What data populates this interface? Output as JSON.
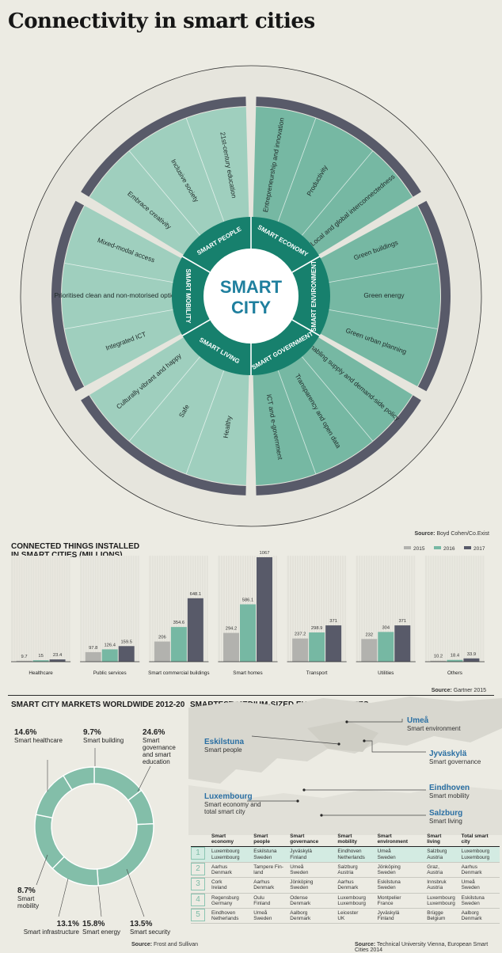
{
  "title": "Connectivity in smart cities",
  "wheel": {
    "center": [
      "SMART",
      "CITY"
    ],
    "domains": [
      "SMART ECONOMY",
      "SMART ENVIRONMENT",
      "SMART GOVERNMENT",
      "SMART LIVING",
      "SMART MOBILITY",
      "SMART PEOPLE"
    ],
    "spokes": [
      "Entrepreneurship and innovation",
      "Productivity",
      "Local and global interconnectedness",
      "Green buildings",
      "Green energy",
      "Green urban planning",
      "Enabling supply and demand-side policy",
      "Transparency and open data",
      "ICT and e-government",
      "Healthy",
      "Safe",
      "Culturally vibrant and happy",
      "Integrated ICT",
      "Prioritised clean and non-motorised options",
      "Mixed-modal access",
      "Embrace creativity",
      "Inclusive society",
      "21st-century education"
    ],
    "source_label": "Source:",
    "source": "Boyd Cohen/Co.Exist"
  },
  "colors": {
    "dark": "#17806d",
    "mid": "#76b8a3",
    "light": "#9fcfbe",
    "grey": "#b2b2ae",
    "navy": "#585a69"
  },
  "connected": {
    "heading_line1": "CONNECTED THINGS INSTALLED",
    "heading_line2": "IN SMART CITIES (MILLIONS)",
    "source_label": "Source:",
    "source": "Gartner 2015"
  },
  "markets": {
    "heading": "SMART CITY MARKETS WORLDWIDE 2012-20",
    "source_label": "Source:",
    "source": "Frost and Sullivan",
    "segments": [
      {
        "pct": "14.6%",
        "label": "Smart healthcare"
      },
      {
        "pct": "9.7%",
        "label": "Smart building"
      },
      {
        "pct": "24.6%",
        "label": "Smart governance and smart education"
      },
      {
        "pct": "13.5%",
        "label": "Smart  security"
      },
      {
        "pct": "15.8%",
        "label": "Smart energy"
      },
      {
        "pct": "13.1%",
        "label": "Smart infrastructure"
      },
      {
        "pct": "8.7%",
        "label": "Smart mobility"
      }
    ]
  },
  "chart_data": [
    {
      "type": "bar",
      "categories": [
        "Healthcare",
        "Public services",
        "Smart commercial buildings",
        "Smart homes",
        "Transport",
        "Utilities",
        "Others"
      ],
      "series": [
        {
          "name": "2015",
          "values": [
            9.7,
            97.8,
            206,
            294.2,
            237.2,
            232,
            10.2
          ]
        },
        {
          "name": "2016",
          "values": [
            15,
            126.4,
            354.6,
            586.1,
            298.9,
            304,
            18.4
          ]
        },
        {
          "name": "2017",
          "values": [
            23.4,
            159.5,
            648.1,
            1067,
            371,
            371,
            33.9
          ]
        }
      ],
      "title": "CONNECTED THINGS INSTALLED IN SMART CITIES (MILLIONS)",
      "ylim": [
        0,
        1067
      ],
      "legend": "top-right"
    },
    {
      "type": "pie",
      "labels": [
        "Smart healthcare",
        "Smart building",
        "Smart governance and smart education",
        "Smart  security",
        "Smart energy",
        "Smart infrastructure",
        "Smart mobility"
      ],
      "values": [
        14.6,
        9.7,
        24.6,
        13.5,
        15.8,
        13.1,
        8.7
      ],
      "title": "SMART CITY MARKETS WORLDWIDE 2012-20"
    }
  ],
  "cities": {
    "heading": "SMARTEST MEDIUM-SIZED EUROPEAN CITIES",
    "source_label": "Source:",
    "source": "Technical University Vienna, European Smart Cities 2014",
    "callouts": [
      {
        "name": "Umeå",
        "desc": "Smart environment"
      },
      {
        "name": "Eskilstuna",
        "desc": "Smart people"
      },
      {
        "name": "Jyväskylä",
        "desc": "Smart governance"
      },
      {
        "name": "Eindhoven",
        "desc": "Smart mobility"
      },
      {
        "name": "Luxembourg",
        "desc": "Smart economy and total smart city"
      },
      {
        "name": "Salzburg",
        "desc": "Smart living"
      }
    ],
    "columns": [
      "Smart economy",
      "Smart people",
      "Smart governance",
      "Smart mobility",
      "Smart environment",
      "Smart living",
      "Total smart city"
    ],
    "rows": [
      {
        "rank": "1",
        "cells": [
          "Luxembourg\nLuxembourg",
          "Eskilstuna\nSweden",
          "Jyväskylä\nFinland",
          "Eindhoven\nNetherlands",
          "Umeå\nSweden",
          "Salzburg\nAustria",
          "Luxembourg\nLuxembourg"
        ]
      },
      {
        "rank": "2",
        "cells": [
          "Aarhus\nDenmark",
          "Tampere Fin-\nland",
          "Umeå\nSweden",
          "Salzburg\nAustria",
          "Jönköping\nSweden",
          "Graz,\nAustria",
          "Aarhus\nDenmark"
        ]
      },
      {
        "rank": "3",
        "cells": [
          "Cork\nIreland",
          "Aarhus\nDenmark",
          "Jönköping\nSweden",
          "Aarhus\nDenmark",
          "Eskilstuna\nSweden",
          "Innsbruk\nAustria",
          "Umeå\nSweden"
        ]
      },
      {
        "rank": "4",
        "cells": [
          "Regensburg\nGermany",
          "Oulu\nFinland",
          "Odense\nDenmark",
          "Luxembourg\nLuxembourg",
          "Montpelier\nFrance",
          "Luxembourg\nLuxembourg",
          "Eskilstuna\nSweden"
        ]
      },
      {
        "rank": "5",
        "cells": [
          "Eindhoven\nNetherlands",
          "Umeå\nSweden",
          "Aalborg\nDenmark",
          "Leicester\nUK",
          "Jyväskylä\nFinland",
          "Brügge\nBelgium",
          "Aalborg\nDenmark"
        ]
      }
    ]
  }
}
